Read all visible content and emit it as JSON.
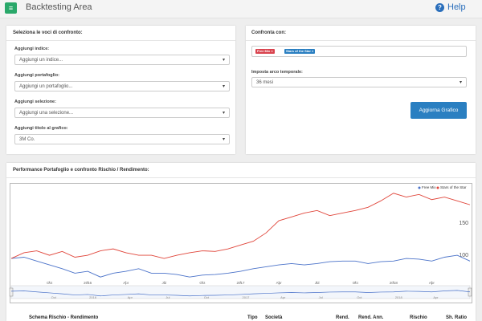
{
  "header": {
    "title": "Backtesting Area",
    "help": "Help"
  },
  "left_panel": {
    "title": "Seleziona le voci di confronto:",
    "fields": [
      {
        "label": "Aggiungi indice:",
        "value": "Aggiungi un indice..."
      },
      {
        "label": "Aggiungi portafoglio:",
        "value": "Aggiungi un portafoglio..."
      },
      {
        "label": "Aggiungi selezione:",
        "value": "Aggiungi una selezione..."
      },
      {
        "label": "Aggiungi titolo al grafico:",
        "value": "3M Co."
      }
    ]
  },
  "right_panel": {
    "title": "Confronta con:",
    "tags": [
      "Free Mix",
      "Stars of the Star"
    ],
    "period_label": "Imposta arco temporale:",
    "period_value": "36 mesi",
    "button": "Aggiorna Grafico"
  },
  "performance": {
    "title": "Performance Portafoglio e confronto Rischio / Rendimento:",
    "table_columns": [
      "Schema Rischio - Rendimento",
      "Tipo",
      "Società",
      "Rend.",
      "Rend. Ann.",
      "Rischio",
      "Sh. Ratio"
    ]
  },
  "chart_data": {
    "type": "line",
    "x": [
      0,
      1,
      2,
      3,
      4,
      5,
      6,
      7,
      8,
      9,
      10,
      11,
      12,
      13,
      14,
      15,
      16,
      17,
      18,
      19,
      20,
      21,
      22,
      23,
      24,
      25,
      26,
      27,
      28,
      29,
      30,
      31,
      32,
      33,
      34,
      35,
      36
    ],
    "series": [
      {
        "name": "Free Mix",
        "color": "#4a72c9",
        "values": [
          95,
          97,
          91,
          85,
          79,
          72,
          75,
          66,
          72,
          75,
          79,
          72,
          72,
          70,
          66,
          69,
          70,
          72,
          75,
          79,
          82,
          85,
          87,
          85,
          87,
          90,
          91,
          91,
          87,
          90,
          91,
          95,
          94,
          91,
          97,
          100,
          91
        ]
      },
      {
        "name": "Stars of the Star",
        "color": "#e0453a",
        "values": [
          95,
          104,
          107,
          100,
          106,
          97,
          100,
          107,
          110,
          104,
          100,
          100,
          95,
          100,
          104,
          107,
          106,
          110,
          116,
          122,
          135,
          154,
          160,
          166,
          170,
          162,
          166,
          170,
          175,
          185,
          197,
          191,
          195,
          187,
          191,
          185,
          179
        ]
      }
    ],
    "xlim": [
      0,
      36
    ],
    "xticks": [
      {
        "value": 3,
        "label": "Oct"
      },
      {
        "value": 6,
        "label": "2016"
      },
      {
        "value": 9,
        "label": "Apr"
      },
      {
        "value": 12,
        "label": "Jul"
      },
      {
        "value": 15,
        "label": "Oct"
      },
      {
        "value": 18,
        "label": "2017"
      },
      {
        "value": 21,
        "label": "Apr"
      },
      {
        "value": 24,
        "label": "Jul"
      },
      {
        "value": 27,
        "label": "Oct"
      },
      {
        "value": 30,
        "label": "2018"
      },
      {
        "value": 33,
        "label": "Apr"
      }
    ],
    "ylim": [
      60,
      208
    ],
    "yticks": [
      100,
      150
    ],
    "legend": "top-right"
  }
}
